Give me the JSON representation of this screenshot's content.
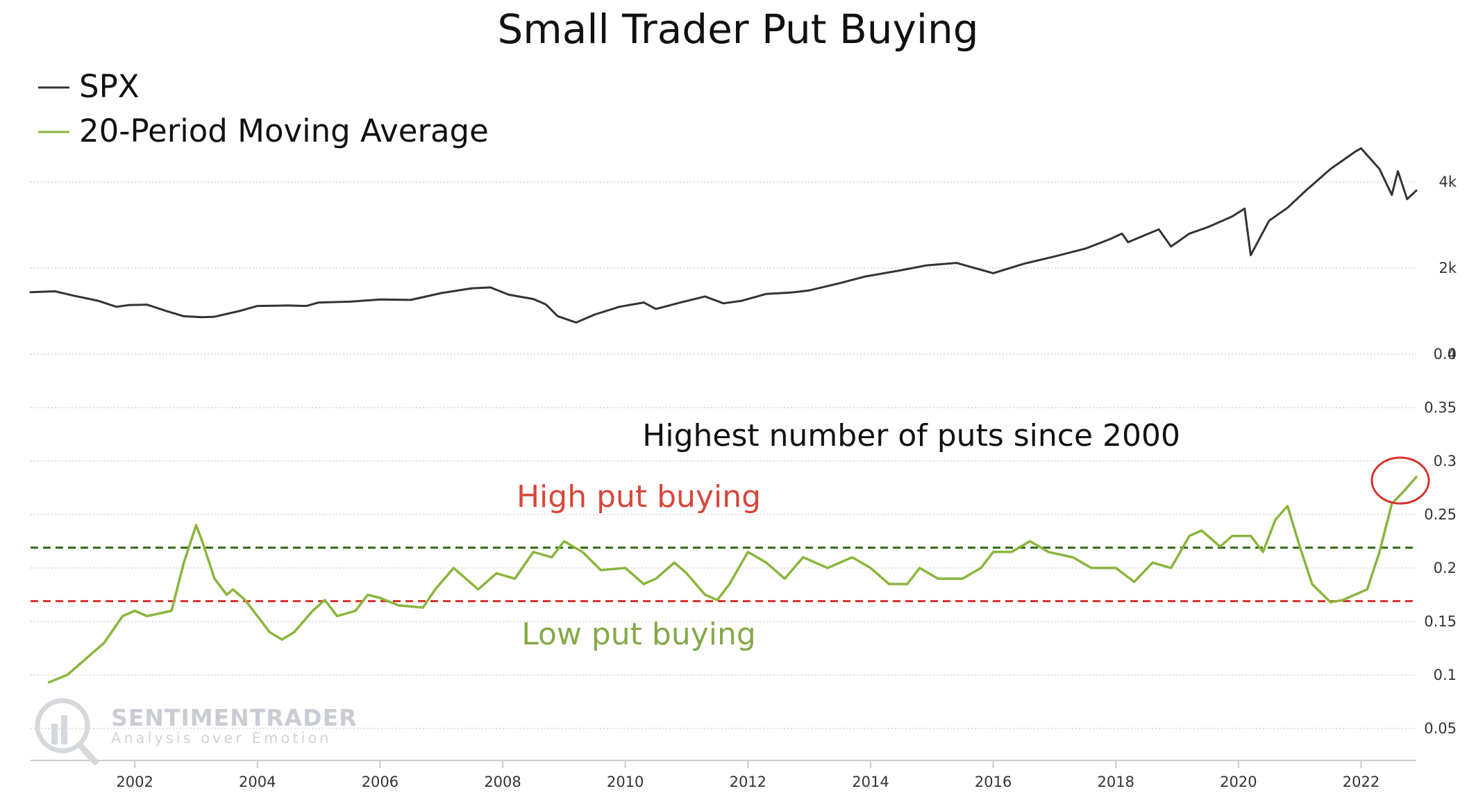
{
  "chart_data": {
    "type": "line",
    "title": "Small Trader Put Buying",
    "legend": [
      {
        "label": "SPX",
        "color": "#333333"
      },
      {
        "label": "20-Period Moving Average",
        "color": "#8ab53c"
      }
    ],
    "legend_position": "top-left",
    "grid": true,
    "x_ticks": [
      "2002",
      "2004",
      "2006",
      "2008",
      "2010",
      "2012",
      "2014",
      "2016",
      "2018",
      "2020",
      "2022"
    ],
    "xlim": [
      2000.3,
      2022.9
    ],
    "panels": [
      {
        "name": "SPX",
        "axis": "right",
        "ylim": [
          0,
          6000
        ],
        "y_ticks": [
          {
            "value": 0,
            "label": "0"
          },
          {
            "value": 2000,
            "label": "2k"
          },
          {
            "value": 4000,
            "label": "4k"
          }
        ],
        "series": [
          {
            "name": "SPX",
            "color": "#333333",
            "points": [
              [
                2000.3,
                1440
              ],
              [
                2000.7,
                1460
              ],
              [
                2001.0,
                1360
              ],
              [
                2001.4,
                1240
              ],
              [
                2001.7,
                1100
              ],
              [
                2001.9,
                1140
              ],
              [
                2002.2,
                1150
              ],
              [
                2002.5,
                1010
              ],
              [
                2002.8,
                880
              ],
              [
                2003.1,
                860
              ],
              [
                2003.3,
                870
              ],
              [
                2003.7,
                1000
              ],
              [
                2004.0,
                1120
              ],
              [
                2004.5,
                1130
              ],
              [
                2004.8,
                1120
              ],
              [
                2005.0,
                1200
              ],
              [
                2005.5,
                1220
              ],
              [
                2006.0,
                1270
              ],
              [
                2006.5,
                1260
              ],
              [
                2007.0,
                1420
              ],
              [
                2007.5,
                1530
              ],
              [
                2007.8,
                1550
              ],
              [
                2008.1,
                1380
              ],
              [
                2008.5,
                1280
              ],
              [
                2008.7,
                1160
              ],
              [
                2008.9,
                880
              ],
              [
                2009.2,
                735
              ],
              [
                2009.5,
                920
              ],
              [
                2009.9,
                1100
              ],
              [
                2010.3,
                1200
              ],
              [
                2010.5,
                1050
              ],
              [
                2010.9,
                1200
              ],
              [
                2011.3,
                1340
              ],
              [
                2011.6,
                1180
              ],
              [
                2011.9,
                1240
              ],
              [
                2012.3,
                1400
              ],
              [
                2012.7,
                1430
              ],
              [
                2013.0,
                1480
              ],
              [
                2013.5,
                1650
              ],
              [
                2013.9,
                1800
              ],
              [
                2014.5,
                1950
              ],
              [
                2014.9,
                2060
              ],
              [
                2015.4,
                2120
              ],
              [
                2015.7,
                2000
              ],
              [
                2016.0,
                1880
              ],
              [
                2016.5,
                2100
              ],
              [
                2017.0,
                2270
              ],
              [
                2017.5,
                2450
              ],
              [
                2017.9,
                2670
              ],
              [
                2018.1,
                2800
              ],
              [
                2018.2,
                2600
              ],
              [
                2018.7,
                2900
              ],
              [
                2018.9,
                2500
              ],
              [
                2019.2,
                2800
              ],
              [
                2019.5,
                2950
              ],
              [
                2019.9,
                3200
              ],
              [
                2020.1,
                3380
              ],
              [
                2020.2,
                2300
              ],
              [
                2020.5,
                3100
              ],
              [
                2020.8,
                3400
              ],
              [
                2021.1,
                3800
              ],
              [
                2021.5,
                4300
              ],
              [
                2021.9,
                4700
              ],
              [
                2022.0,
                4780
              ],
              [
                2022.3,
                4300
              ],
              [
                2022.5,
                3700
              ],
              [
                2022.6,
                4250
              ],
              [
                2022.75,
                3600
              ],
              [
                2022.9,
                3800
              ]
            ]
          }
        ]
      },
      {
        "name": "Small Trader Put Buying",
        "axis": "right",
        "ylim": [
          0.02,
          0.4
        ],
        "y_ticks": [
          0.05,
          0.1,
          0.15,
          0.2,
          0.25,
          0.3,
          0.35,
          0.4
        ],
        "series": [
          {
            "name": "20-Period Moving Average",
            "color": "#8ab53c",
            "points": [
              [
                2000.6,
                0.093
              ],
              [
                2000.9,
                0.1
              ],
              [
                2001.2,
                0.115
              ],
              [
                2001.5,
                0.13
              ],
              [
                2001.8,
                0.155
              ],
              [
                2002.0,
                0.16
              ],
              [
                2002.2,
                0.155
              ],
              [
                2002.6,
                0.16
              ],
              [
                2002.8,
                0.205
              ],
              [
                2003.0,
                0.24
              ],
              [
                2003.1,
                0.225
              ],
              [
                2003.3,
                0.19
              ],
              [
                2003.5,
                0.175
              ],
              [
                2003.6,
                0.18
              ],
              [
                2003.8,
                0.17
              ],
              [
                2004.0,
                0.155
              ],
              [
                2004.2,
                0.14
              ],
              [
                2004.4,
                0.133
              ],
              [
                2004.6,
                0.14
              ],
              [
                2004.9,
                0.16
              ],
              [
                2005.1,
                0.17
              ],
              [
                2005.3,
                0.155
              ],
              [
                2005.6,
                0.16
              ],
              [
                2005.8,
                0.175
              ],
              [
                2006.0,
                0.172
              ],
              [
                2006.3,
                0.165
              ],
              [
                2006.7,
                0.163
              ],
              [
                2006.9,
                0.18
              ],
              [
                2007.2,
                0.2
              ],
              [
                2007.4,
                0.19
              ],
              [
                2007.6,
                0.18
              ],
              [
                2007.9,
                0.195
              ],
              [
                2008.2,
                0.19
              ],
              [
                2008.5,
                0.215
              ],
              [
                2008.8,
                0.21
              ],
              [
                2009.0,
                0.225
              ],
              [
                2009.3,
                0.215
              ],
              [
                2009.6,
                0.198
              ],
              [
                2010.0,
                0.2
              ],
              [
                2010.3,
                0.185
              ],
              [
                2010.5,
                0.19
              ],
              [
                2010.8,
                0.205
              ],
              [
                2011.0,
                0.195
              ],
              [
                2011.3,
                0.175
              ],
              [
                2011.5,
                0.17
              ],
              [
                2011.7,
                0.185
              ],
              [
                2012.0,
                0.215
              ],
              [
                2012.3,
                0.205
              ],
              [
                2012.6,
                0.19
              ],
              [
                2012.9,
                0.21
              ],
              [
                2013.3,
                0.2
              ],
              [
                2013.7,
                0.21
              ],
              [
                2014.0,
                0.2
              ],
              [
                2014.3,
                0.185
              ],
              [
                2014.6,
                0.185
              ],
              [
                2014.8,
                0.2
              ],
              [
                2015.1,
                0.19
              ],
              [
                2015.5,
                0.19
              ],
              [
                2015.8,
                0.2
              ],
              [
                2016.0,
                0.215
              ],
              [
                2016.3,
                0.215
              ],
              [
                2016.6,
                0.225
              ],
              [
                2016.9,
                0.215
              ],
              [
                2017.3,
                0.21
              ],
              [
                2017.6,
                0.2
              ],
              [
                2018.0,
                0.2
              ],
              [
                2018.3,
                0.187
              ],
              [
                2018.6,
                0.205
              ],
              [
                2018.9,
                0.2
              ],
              [
                2019.2,
                0.23
              ],
              [
                2019.4,
                0.235
              ],
              [
                2019.7,
                0.22
              ],
              [
                2019.9,
                0.23
              ],
              [
                2020.2,
                0.23
              ],
              [
                2020.4,
                0.215
              ],
              [
                2020.6,
                0.245
              ],
              [
                2020.8,
                0.258
              ],
              [
                2021.0,
                0.22
              ],
              [
                2021.2,
                0.185
              ],
              [
                2021.5,
                0.168
              ],
              [
                2021.7,
                0.17
              ],
              [
                2021.9,
                0.175
              ],
              [
                2022.1,
                0.18
              ],
              [
                2022.3,
                0.215
              ],
              [
                2022.5,
                0.26
              ],
              [
                2022.7,
                0.272
              ],
              [
                2022.9,
                0.285
              ]
            ]
          }
        ],
        "reference_lines": [
          {
            "value": 0.219,
            "label": "High put buying",
            "color": "#2e6b12",
            "style": "dashed"
          },
          {
            "value": 0.169,
            "label": "Low put buying",
            "color": "#d6322b",
            "style": "dashed"
          }
        ]
      }
    ],
    "annotations": [
      {
        "text": "Highest number of puts since 2000",
        "x": 2022.8,
        "y": 0.28,
        "marker": "circle"
      },
      {
        "text": "High put buying",
        "color": "#d9463a"
      },
      {
        "text": "Low put buying",
        "color": "#86a84a"
      }
    ]
  },
  "watermark": {
    "name": "SENTIMENTRADER",
    "tagline": "Analysis over Emotion"
  }
}
